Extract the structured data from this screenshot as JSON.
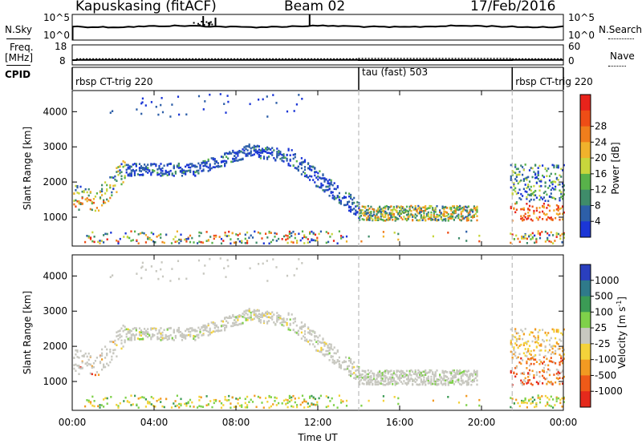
{
  "header": {
    "station": "Kapuskasing (fitACF)",
    "beam": "Beam 02",
    "date": "17/Feb/2016"
  },
  "sky_panel": {
    "left_label": "N.Sky",
    "right_label": "N.Search",
    "tick_high": "10^5",
    "tick_low": "10^0",
    "tick_high_r": "10^5",
    "tick_low_r": "10^0"
  },
  "freq_panel": {
    "left_label_1": "Freq.",
    "left_label_2": "[MHz]",
    "right_label": "Nave",
    "tick_18": "18",
    "tick_8": "8",
    "tick_60": "60",
    "tick_0": "0",
    "freq_level": 10.5,
    "nave_level": 18
  },
  "cpid": {
    "label": "CPID",
    "segments": [
      {
        "name": "rbsp CT-trig 220",
        "start": 0,
        "end": 14
      },
      {
        "name": "tau (fast) 503",
        "start": 14,
        "end": 21.5
      },
      {
        "name": "rbsp CT-trig 220",
        "start": 21.5,
        "end": 24
      }
    ]
  },
  "x_axis": {
    "ticks": [
      "00:00",
      "04:00",
      "08:00",
      "12:00",
      "16:00",
      "20:00",
      "00:00"
    ],
    "tick_hours": [
      0,
      4,
      8,
      12,
      16,
      20,
      24
    ],
    "label": "Time UT"
  },
  "chart_data": [
    {
      "type": "heatmap",
      "name": "power",
      "ylabel": "Slant Range [km]",
      "ylim": [
        180,
        4600
      ],
      "xlim_hours": [
        0,
        24
      ],
      "yticks": [
        "1000",
        "2000",
        "3000",
        "4000"
      ],
      "ytick_values": [
        1000,
        2000,
        3000,
        4000
      ],
      "colorbar_label": "Power [dB]",
      "colorbar_ticks": [
        "4",
        "8",
        "12",
        "16",
        "20",
        "24",
        "28"
      ],
      "colorbar_colors": [
        "#1b36d6",
        "#2d5fa8",
        "#3f8c6a",
        "#58b24a",
        "#c8d63c",
        "#f0b22c",
        "#f07e1c",
        "#ee4d16",
        "#e8231b"
      ]
    },
    {
      "type": "heatmap",
      "name": "velocity",
      "ylabel": "Slant Range [km]",
      "ylim": [
        180,
        4600
      ],
      "xlim_hours": [
        0,
        24
      ],
      "yticks": [
        "1000",
        "2000",
        "3000",
        "4000"
      ],
      "ytick_values": [
        1000,
        2000,
        3000,
        4000
      ],
      "colorbar_label": "Velocity [m s^-1]",
      "colorbar_ticks": [
        "1000",
        "500",
        "100",
        "25",
        "-25",
        "-100",
        "-500",
        "-1000"
      ],
      "colorbar_colors": [
        "#2a3fbf",
        "#2f7a8a",
        "#3b9b55",
        "#7fd14a",
        "#c8c8c0",
        "#f4d23a",
        "#f29a22",
        "#ef5a18",
        "#e52a1c"
      ]
    }
  ]
}
